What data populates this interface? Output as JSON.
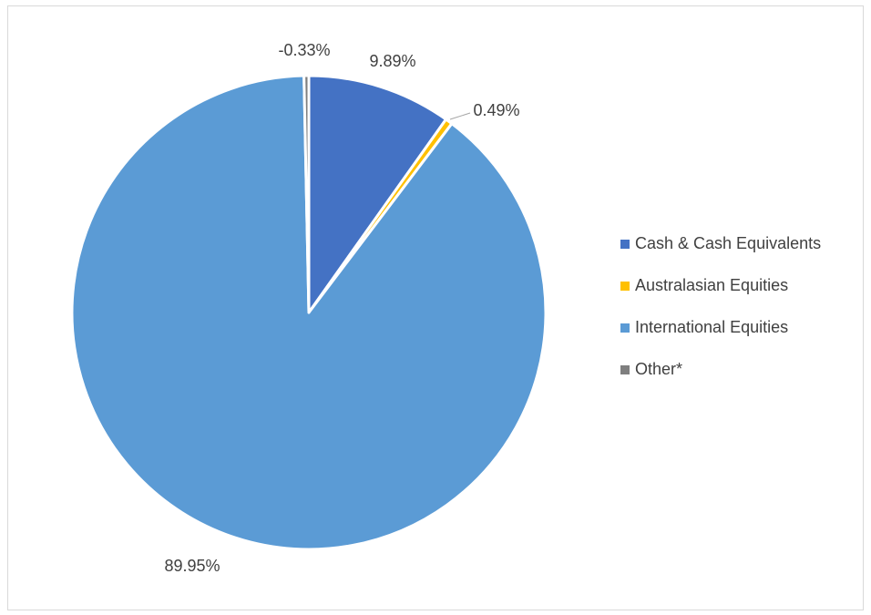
{
  "chart_data": {
    "type": "pie",
    "title": "",
    "slices": [
      {
        "label": "Cash & Cash Equivalents",
        "value": 9.89,
        "display": "9.89%",
        "color": "#4472C4"
      },
      {
        "label": "Australasian Equities",
        "value": 0.49,
        "display": "0.49%",
        "color": "#FFC000"
      },
      {
        "label": "International Equities",
        "value": 89.95,
        "display": "89.95%",
        "color": "#5B9BD5"
      },
      {
        "label": "Other*",
        "value": -0.33,
        "display": "-0.33%",
        "color": "#7F7F7F"
      }
    ],
    "legend_position": "right",
    "start_angle_deg": 0,
    "direction": "clockwise"
  }
}
